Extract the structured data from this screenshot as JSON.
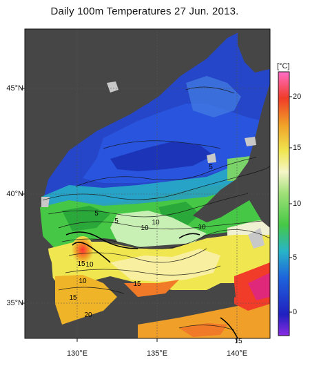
{
  "title": "Daily 100m Temperatures 27 Jun. 2013.",
  "lat_labels": [
    "45°N",
    "40°N",
    "35°N"
  ],
  "lon_labels": [
    "130°E",
    "135°E",
    "140°E"
  ],
  "colorbar": {
    "unit": "[°C]",
    "ticks": [
      "20",
      "15",
      "10",
      "5",
      "0"
    ],
    "colors": {
      "land": "#464646",
      "no_data": "#c8c8c8",
      "cold": "#1e3cc8",
      "cool": "#3c78dc",
      "mid": "#50c850",
      "warm": "#f0e650",
      "hot": "#f03c28"
    }
  },
  "contour_labels": [
    "5",
    "5",
    "5",
    "10",
    "10",
    "10",
    "15",
    "10",
    "10",
    "15",
    "15",
    "20",
    "15"
  ]
}
